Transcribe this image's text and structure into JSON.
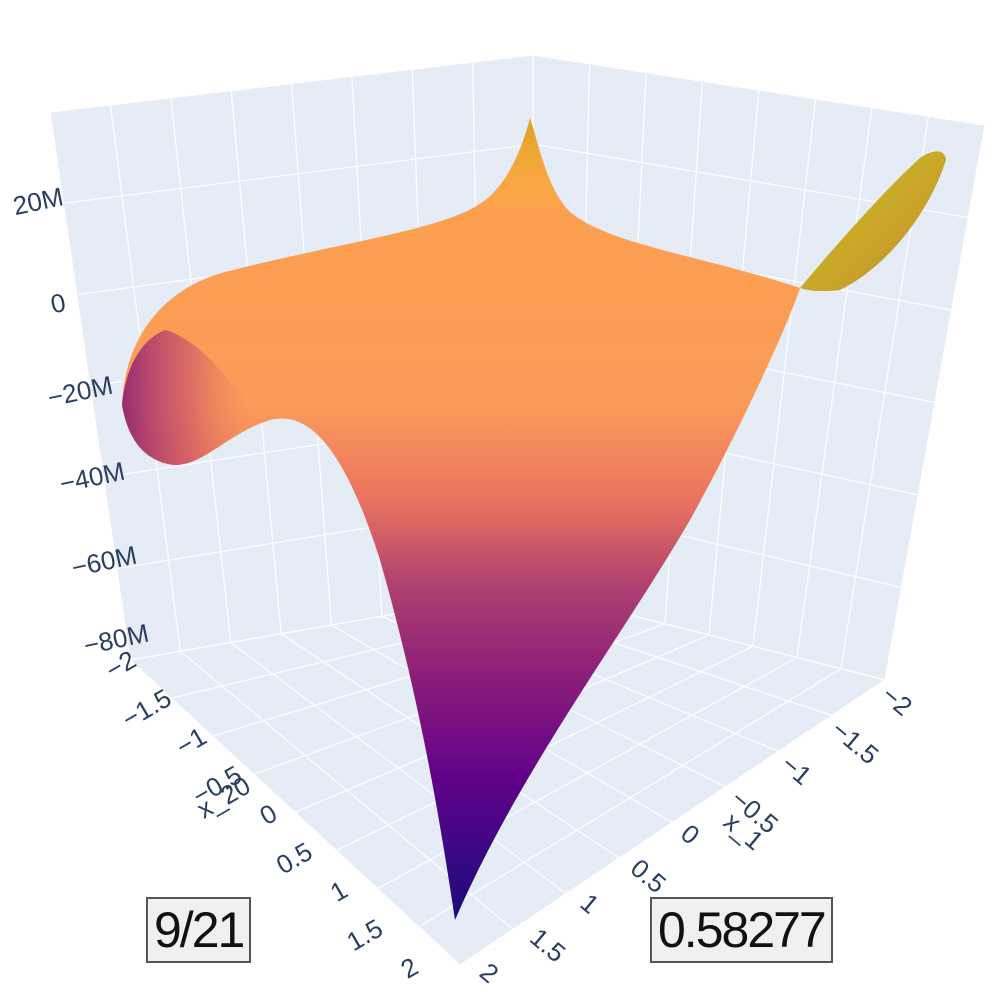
{
  "chart_data": {
    "type": "surface",
    "colorscale": [
      "#0d0887",
      "#46039f",
      "#7201a8",
      "#9c179e",
      "#bd3786",
      "#d8576b",
      "#ed7953",
      "#fb9f3a",
      "#fdca26",
      "#f0f921"
    ],
    "background": "#e5ecf6",
    "grid": true,
    "x_axis": {
      "title": "x_1",
      "ticks": [
        "−2",
        "−1.5",
        "−1",
        "−0.5",
        "0",
        "0.5",
        "1",
        "1.5",
        "2"
      ]
    },
    "y_axis": {
      "title": "x_20",
      "ticks": [
        "−2",
        "−1.5",
        "−1",
        "−0.5",
        "0",
        "0.5",
        "1",
        "1.5",
        "2"
      ]
    },
    "z_axis": {
      "title": "",
      "ticks": [
        "20M",
        "0",
        "−20M",
        "−40M",
        "−60M",
        "−80M"
      ]
    },
    "zlim": [
      -80000000,
      28000000
    ],
    "corner_values": {
      "x1_neg2_x20_neg2": 26000000,
      "x1_pos2_x20_neg2": 27000000,
      "x1_pos2_x20_pos2": -80000000,
      "x1_neg2_x20_pos2": -25000000
    }
  },
  "badges": {
    "left": "9/21",
    "right": "0.58277"
  }
}
